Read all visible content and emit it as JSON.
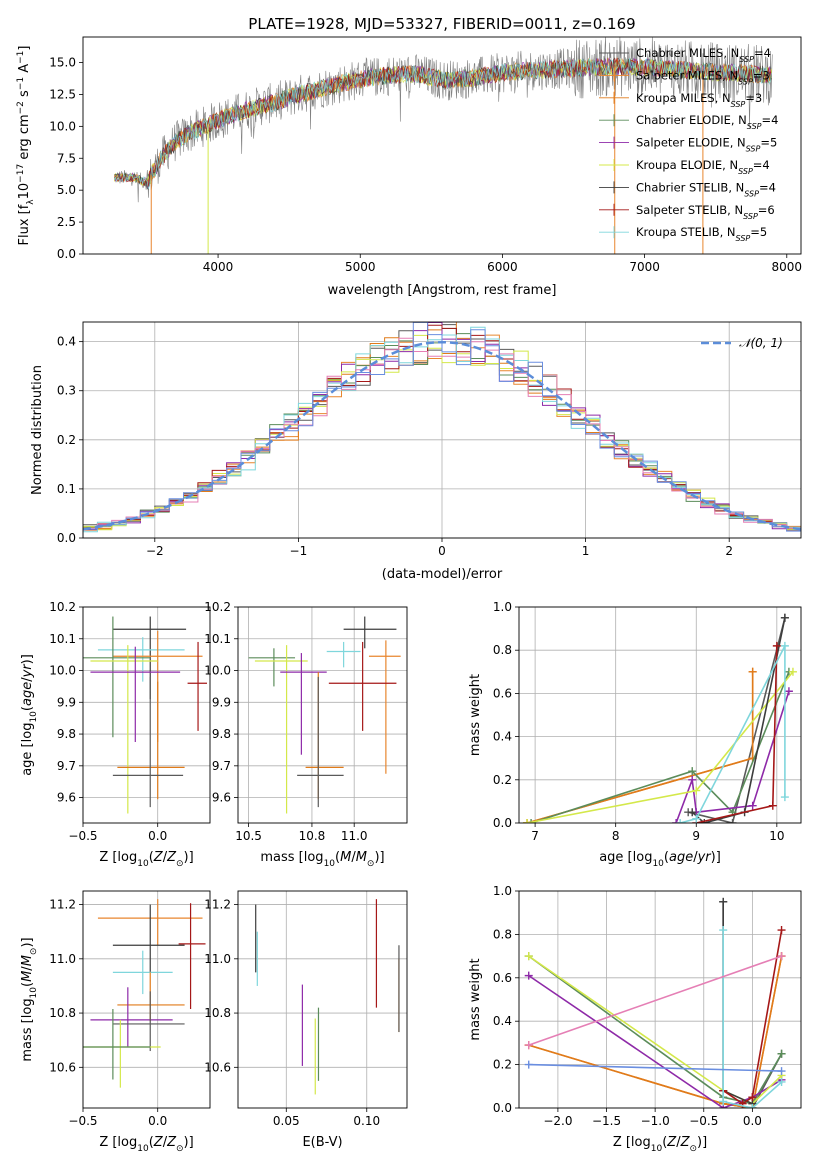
{
  "figure": {
    "title": "PLATE=1928, MJD=53327, FIBERID=0011, z=0.169"
  },
  "colors": {
    "Chabrier MILES": "#5a5a5a",
    "Salpeter MILES": "#e8862f",
    "Kroupa MILES": "#e07b1a",
    "Chabrier ELODIE": "#5b8c5a",
    "Salpeter ELODIE": "#8e2aa8",
    "Kroupa ELODIE": "#d4e84a",
    "Chabrier STELIB": "#3d3d3d",
    "Salpeter STELIB": "#a51818",
    "Kroupa STELIB": "#7fd6dc",
    "data": "#7f7f7f",
    "normal_curve": "#5b8dd9",
    "hist_extra": [
      "#e57fb5",
      "#6a8ee0"
    ]
  },
  "chart_data": [
    {
      "id": "spectrum",
      "type": "line",
      "xlabel": "wavelength [Angstrom, rest frame]",
      "ylabel": "Flux [f_λ10^-17 erg cm^-2 s^-1 A^-1]",
      "xlim": [
        3050,
        8100
      ],
      "ylim": [
        0,
        17
      ],
      "xticks": [
        4000,
        5000,
        6000,
        7000,
        8000
      ],
      "yticks": [
        0.0,
        2.5,
        5.0,
        7.5,
        10.0,
        12.5,
        15.0
      ],
      "grid": false,
      "legend_position": "right",
      "legend": [
        {
          "model": "Chabrier MILES",
          "label": "Chabrier MILES, N",
          "sub": "SSP",
          "suffix": "=4"
        },
        {
          "model": "Salpeter MILES",
          "label": "Salpeter MILES, N",
          "sub": "SSP",
          "suffix": "=3"
        },
        {
          "model": "Kroupa MILES",
          "label": "Kroupa MILES, N",
          "sub": "SSP",
          "suffix": "=3"
        },
        {
          "model": "Chabrier ELODIE",
          "label": "Chabrier ELODIE, N",
          "sub": "SSP",
          "suffix": "=4"
        },
        {
          "model": "Salpeter ELODIE",
          "label": "Salpeter ELODIE, N",
          "sub": "SSP",
          "suffix": "=5"
        },
        {
          "model": "Kroupa ELODIE",
          "label": "Kroupa ELODIE, N",
          "sub": "SSP",
          "suffix": "=4"
        },
        {
          "model": "Chabrier STELIB",
          "label": "Chabrier STELIB, N",
          "sub": "SSP",
          "suffix": "=4"
        },
        {
          "model": "Salpeter STELIB",
          "label": "Salpeter STELIB, N",
          "sub": "SSP",
          "suffix": "=6"
        },
        {
          "model": "Kroupa STELIB",
          "label": "Kroupa STELIB, N",
          "sub": "SSP",
          "suffix": "=5"
        }
      ],
      "data_range_x": [
        3270,
        7900
      ],
      "model_shape": {
        "x": [
          3270,
          3400,
          3500,
          3600,
          3700,
          3800,
          3900,
          4000,
          4200,
          4400,
          4600,
          4800,
          5000,
          5200,
          5400,
          5600,
          5800,
          6000,
          6200,
          6400,
          6600,
          6800,
          7000,
          7200,
          7400,
          7600,
          7900
        ],
        "y": [
          6.0,
          6.0,
          5.6,
          7.5,
          8.8,
          9.5,
          10.0,
          10.5,
          11.3,
          11.9,
          12.6,
          13.2,
          13.7,
          14.0,
          14.1,
          13.6,
          13.8,
          14.2,
          14.4,
          14.5,
          14.6,
          14.7,
          14.6,
          14.5,
          14.3,
          14.2,
          14.0
        ]
      },
      "spikes": [
        {
          "x": 3530,
          "y": 0.0
        },
        {
          "x": 3930,
          "y": 0.0
        },
        {
          "x": 6790,
          "y": 0.0
        },
        {
          "x": 7410,
          "y": 0.0
        }
      ]
    },
    {
      "id": "residual_hist",
      "type": "line",
      "xlabel": "(data-model)/error",
      "ylabel": "Normed distribution",
      "xlim": [
        -2.5,
        2.5
      ],
      "ylim": [
        0,
        0.44
      ],
      "xticks": [
        -2,
        -1,
        0,
        1,
        2
      ],
      "yticks": [
        0.0,
        0.1,
        0.2,
        0.3,
        0.4
      ],
      "grid": true,
      "legend_position": "top-right",
      "legend": [
        {
          "label": "𝒩(0, 1)"
        }
      ],
      "bin_width": 0.1,
      "bin_start": -2.5,
      "n_histograms": 9
    },
    {
      "id": "age_vs_Z",
      "type": "scatter",
      "xlabel": "Z [log10(Z/Z_sun)]",
      "ylabel": "age [log10(age/yr)]",
      "xlim": [
        -0.5,
        0.35
      ],
      "ylim": [
        9.52,
        10.2
      ],
      "xticks": [
        -0.5,
        0.0
      ],
      "xticklabels": [
        "−0.5",
        "0.0"
      ],
      "yticks": [
        9.6,
        9.7,
        9.8,
        9.9,
        10.0,
        10.1,
        10.2
      ],
      "grid": true,
      "points": [
        {
          "model": "Chabrier STELIB",
          "x": -0.05,
          "xerr": [
            0.25,
            0.24
          ],
          "y": 10.13,
          "yerr": [
            0.22,
            0.04
          ]
        },
        {
          "model": "Kroupa STELIB",
          "x": -0.1,
          "xerr": [
            0.3,
            0.28
          ],
          "y": 10.065,
          "yerr": [
            0.1,
            0.04
          ]
        },
        {
          "model": "Salpeter MILES",
          "x": 0.0,
          "xerr": [
            0.3,
            0.3
          ],
          "y": 10.045,
          "yerr": [
            0.27,
            0.08
          ]
        },
        {
          "model": "Chabrier ELODIE",
          "x": -0.3,
          "xerr": [
            0.2,
            0.25
          ],
          "y": 10.04,
          "yerr": [
            0.25,
            0.13
          ]
        },
        {
          "model": "Kroupa ELODIE",
          "x": -0.2,
          "xerr": [
            0.25,
            0.2
          ],
          "y": 10.03,
          "yerr": [
            0.48,
            0.05
          ]
        },
        {
          "model": "Salpeter ELODIE",
          "x": -0.15,
          "xerr": [
            0.3,
            0.3
          ],
          "y": 9.995,
          "yerr": [
            0.22,
            0.08
          ]
        },
        {
          "model": "Salpeter STELIB",
          "x": 0.27,
          "xerr": [
            0.07,
            0.06
          ],
          "y": 9.96,
          "yerr": [
            0.15,
            0.13
          ]
        },
        {
          "model": "Kroupa MILES",
          "x": 0.0,
          "xerr": [
            0.27,
            0.18
          ],
          "y": 9.695,
          "yerr": [
            0.1,
            0.27
          ]
        },
        {
          "model": "Chabrier MILES",
          "x": -0.05,
          "xerr": [
            0.25,
            0.22
          ],
          "y": 9.67,
          "yerr": [
            0.1,
            0.31
          ]
        }
      ]
    },
    {
      "id": "age_vs_mass",
      "type": "scatter",
      "xlabel": "mass [log10(M/M_sun)]",
      "ylabel": "",
      "xlim": [
        10.45,
        11.25
      ],
      "ylim": [
        9.52,
        10.2
      ],
      "xticks": [
        10.5,
        10.8,
        11.0
      ],
      "xticklabels": [
        "10.5",
        "10.8",
        "11.0"
      ],
      "yticks": [
        9.6,
        9.7,
        9.8,
        9.9,
        10.0,
        10.1,
        10.2
      ],
      "grid": true,
      "points": [
        {
          "model": "Chabrier STELIB",
          "x": 11.05,
          "xerr": [
            0.1,
            0.15
          ],
          "y": 10.13,
          "yerr": [
            0.06,
            0.04
          ]
        },
        {
          "model": "Kroupa STELIB",
          "x": 10.95,
          "xerr": [
            0.08,
            0.08
          ],
          "y": 10.06,
          "yerr": [
            0.05,
            0.03
          ]
        },
        {
          "model": "Salpeter MILES",
          "x": 11.15,
          "xerr": [
            0.08,
            0.07
          ],
          "y": 10.045,
          "yerr": [
            0.37,
            0.05
          ]
        },
        {
          "model": "Chabrier ELODIE",
          "x": 10.62,
          "xerr": [
            0.12,
            0.1
          ],
          "y": 10.04,
          "yerr": [
            0.09,
            0.03
          ]
        },
        {
          "model": "Kroupa ELODIE",
          "x": 10.68,
          "xerr": [
            0.15,
            0.1
          ],
          "y": 10.03,
          "yerr": [
            0.48,
            0.05
          ]
        },
        {
          "model": "Salpeter ELODIE",
          "x": 10.75,
          "xerr": [
            0.1,
            0.12
          ],
          "y": 9.995,
          "yerr": [
            0.26,
            0.06
          ]
        },
        {
          "model": "Salpeter STELIB",
          "x": 11.04,
          "xerr": [
            0.16,
            0.16
          ],
          "y": 9.96,
          "yerr": [
            0.15,
            0.13
          ]
        },
        {
          "model": "Kroupa MILES",
          "x": 10.83,
          "xerr": [
            0.06,
            0.12
          ],
          "y": 9.695,
          "yerr": [
            0.1,
            0.3
          ]
        },
        {
          "model": "Chabrier MILES",
          "x": 10.83,
          "xerr": [
            0.1,
            0.12
          ],
          "y": 9.67,
          "yerr": [
            0.1,
            0.31
          ]
        }
      ]
    },
    {
      "id": "weight_vs_age",
      "type": "line",
      "xlabel": "age [log10(age/yr)]",
      "ylabel": "mass weight",
      "xlim": [
        6.8,
        10.3
      ],
      "ylim": [
        0,
        1.0
      ],
      "xticks": [
        7,
        8,
        9,
        10
      ],
      "yticks": [
        0.0,
        0.2,
        0.4,
        0.6,
        0.8,
        1.0
      ],
      "grid": true,
      "series": [
        {
          "model": "Chabrier MILES",
          "x": [
            8.9,
            9.45,
            10.1
          ],
          "y": [
            0.05,
            0.0,
            0.95
          ]
        },
        {
          "model": "Salpeter MILES",
          "x": [
            6.9,
            9.7,
            9.7
          ],
          "y": [
            0.0,
            0.3,
            0.7
          ]
        },
        {
          "model": "Kroupa MILES",
          "x": [
            6.9,
            9.7,
            9.7
          ],
          "y": [
            0.0,
            0.3,
            0.7
          ]
        },
        {
          "model": "Chabrier ELODIE",
          "x": [
            6.95,
            8.95,
            9.45,
            10.15
          ],
          "y": [
            0.0,
            0.24,
            0.05,
            0.7
          ]
        },
        {
          "model": "Salpeter ELODIE",
          "x": [
            8.75,
            8.95,
            9.0,
            9.7,
            10.15
          ],
          "y": [
            0.0,
            0.2,
            0.05,
            0.08,
            0.61
          ]
        },
        {
          "model": "Kroupa ELODIE",
          "x": [
            6.9,
            9.0,
            10.2
          ],
          "y": [
            0.0,
            0.15,
            0.7
          ]
        },
        {
          "model": "Chabrier STELIB",
          "x": [
            8.95,
            9.1,
            9.6,
            10.1
          ],
          "y": [
            0.05,
            0.0,
            0.05,
            0.95
          ]
        },
        {
          "model": "Salpeter STELIB",
          "x": [
            9.0,
            9.95,
            10.0
          ],
          "y": [
            0.0,
            0.08,
            0.82
          ]
        },
        {
          "model": "Kroupa STELIB",
          "x": [
            8.8,
            9.0,
            10.1,
            10.1
          ],
          "y": [
            0.0,
            0.02,
            0.82,
            0.12
          ]
        }
      ]
    },
    {
      "id": "mass_vs_Z",
      "type": "scatter",
      "xlabel": "Z [log10(Z/Z_sun)]",
      "ylabel": "mass [log10(M/M_sun)]",
      "xlim": [
        -0.5,
        0.35
      ],
      "ylim": [
        10.45,
        11.25
      ],
      "xticks": [
        -0.5,
        0.0
      ],
      "xticklabels": [
        "−0.5",
        "0.0"
      ],
      "yticks": [
        10.6,
        10.8,
        11.0,
        11.2
      ],
      "grid": true,
      "points": [
        {
          "model": "Salpeter MILES",
          "x": 0.0,
          "xerr": [
            0.4,
            0.3
          ],
          "y": 11.15,
          "yerr": [
            0.1,
            0.07
          ]
        },
        {
          "model": "Chabrier STELIB",
          "x": -0.05,
          "xerr": [
            0.25,
            0.23
          ],
          "y": 11.05,
          "yerr": [
            0.1,
            0.15
          ]
        },
        {
          "model": "Salpeter STELIB",
          "x": 0.22,
          "xerr": [
            0.08,
            0.1
          ],
          "y": 11.055,
          "yerr": [
            0.24,
            0.15
          ]
        },
        {
          "model": "Kroupa STELIB",
          "x": -0.1,
          "xerr": [
            0.2,
            0.2
          ],
          "y": 10.95,
          "yerr": [
            0.08,
            0.08
          ]
        },
        {
          "model": "Kroupa MILES",
          "x": -0.05,
          "xerr": [
            0.22,
            0.23
          ],
          "y": 10.83,
          "yerr": [
            0.06,
            0.12
          ]
        },
        {
          "model": "Salpeter ELODIE",
          "x": -0.2,
          "xerr": [
            0.25,
            0.3
          ],
          "y": 10.775,
          "yerr": [
            0.1,
            0.12
          ]
        },
        {
          "model": "Chabrier MILES",
          "x": -0.05,
          "xerr": [
            0.25,
            0.23
          ],
          "y": 10.76,
          "yerr": [
            0.1,
            0.12
          ]
        },
        {
          "model": "Kroupa ELODIE",
          "x": -0.25,
          "xerr": [
            0.25,
            0.27
          ],
          "y": 10.675,
          "yerr": [
            0.15,
            0.1
          ]
        },
        {
          "model": "Chabrier ELODIE",
          "x": -0.3,
          "xerr": [
            0.2,
            0.25
          ],
          "y": 10.675,
          "yerr": [
            0.12,
            0.14
          ]
        }
      ]
    },
    {
      "id": "mass_vs_ebv",
      "type": "scatter",
      "xlabel": "E(B-V)",
      "ylabel": "",
      "xlim": [
        0.02,
        0.125
      ],
      "ylim": [
        10.45,
        11.25
      ],
      "xticks": [
        0.05,
        0.1
      ],
      "xticklabels": [
        "0.05",
        "0.10"
      ],
      "yticks": [
        10.6,
        10.8,
        11.0,
        11.2
      ],
      "grid": true,
      "points": [
        {
          "model": "Chabrier STELIB",
          "x": 0.031,
          "y": 11.05,
          "yerr": [
            0.1,
            0.15
          ]
        },
        {
          "model": "Kroupa STELIB",
          "x": 0.032,
          "y": 11.0,
          "yerr": [
            0.1,
            0.1
          ]
        },
        {
          "model": "Salpeter ELODIE",
          "x": 0.06,
          "y": 10.775,
          "yerr": [
            0.17,
            0.13
          ]
        },
        {
          "model": "Kroupa ELODIE",
          "x": 0.068,
          "y": 10.68,
          "yerr": [
            0.18,
            0.1
          ]
        },
        {
          "model": "Chabrier ELODIE",
          "x": 0.07,
          "y": 10.69,
          "yerr": [
            0.14,
            0.13
          ]
        },
        {
          "model": "Salpeter STELIB",
          "x": 0.106,
          "y": 11.02,
          "yerr": [
            0.2,
            0.2
          ]
        },
        {
          "model": "Kroupa MILES",
          "x": 0.12,
          "y": 10.9,
          "yerr": [
            0.17,
            0.1
          ]
        },
        {
          "model": "Chabrier MILES",
          "x": 0.12,
          "y": 10.9,
          "yerr": [
            0.17,
            0.15
          ]
        }
      ]
    },
    {
      "id": "weight_vs_Z",
      "type": "line",
      "xlabel": "Z [log10(Z/Z_sun)]",
      "ylabel": "mass weight",
      "xlim": [
        -2.4,
        0.5
      ],
      "ylim": [
        0,
        1.0
      ],
      "xticks": [
        -2.0,
        -1.5,
        -1.0,
        -0.5,
        0.0
      ],
      "xticklabels": [
        "−2.0",
        "−1.5",
        "−1.0",
        "−0.5",
        "0.0"
      ],
      "yticks": [
        0.0,
        0.2,
        0.4,
        0.6,
        0.8,
        1.0
      ],
      "grid": true,
      "series": [
        {
          "model": "Chabrier MILES",
          "x": [
            -0.3,
            -0.3,
            0.0,
            0.3
          ],
          "y": [
            0.95,
            0.02,
            0.0,
            0.25
          ]
        },
        {
          "model": "Salpeter MILES",
          "x": [
            -2.3,
            -0.3,
            0.0,
            0.3
          ],
          "y": [
            0.29,
            0.02,
            0.0,
            0.7
          ]
        },
        {
          "model": "Kroupa MILES",
          "x": [
            -2.3,
            -0.3,
            0.0,
            0.3
          ],
          "y": [
            0.29,
            0.02,
            0.0,
            0.7
          ]
        },
        {
          "model": "Chabrier ELODIE",
          "x": [
            -2.3,
            -0.3,
            0.0,
            0.3
          ],
          "y": [
            0.7,
            0.05,
            0.02,
            0.25
          ]
        },
        {
          "model": "Salpeter ELODIE",
          "x": [
            -2.3,
            -0.3,
            0.0,
            0.3
          ],
          "y": [
            0.61,
            0.0,
            0.05,
            0.13
          ]
        },
        {
          "model": "Kroupa ELODIE",
          "x": [
            -2.3,
            -0.3,
            0.0,
            0.3
          ],
          "y": [
            0.7,
            0.08,
            0.02,
            0.15
          ]
        },
        {
          "model": "Chabrier STELIB",
          "x": [
            -0.3,
            -0.3,
            0.0
          ],
          "y": [
            0.95,
            0.08,
            0.02
          ]
        },
        {
          "model": "Salpeter STELIB",
          "x": [
            -0.3,
            -0.1,
            0.0,
            0.3
          ],
          "y": [
            0.08,
            0.02,
            0.05,
            0.82
          ]
        },
        {
          "model": "Kroupa STELIB",
          "x": [
            -0.3,
            -0.3,
            0.0,
            0.3
          ],
          "y": [
            0.82,
            0.03,
            0.0,
            0.12
          ]
        },
        {
          "model": "Kroupa STELIB",
          "x": [
            -2.3,
            0.3
          ],
          "y": [
            0.2,
            0.17
          ],
          "colorKey": "hist1"
        },
        {
          "model": "Kroupa STELIB",
          "x": [
            -2.3,
            0.3
          ],
          "y": [
            0.29,
            0.7
          ],
          "colorKey": "hist0"
        }
      ]
    }
  ]
}
